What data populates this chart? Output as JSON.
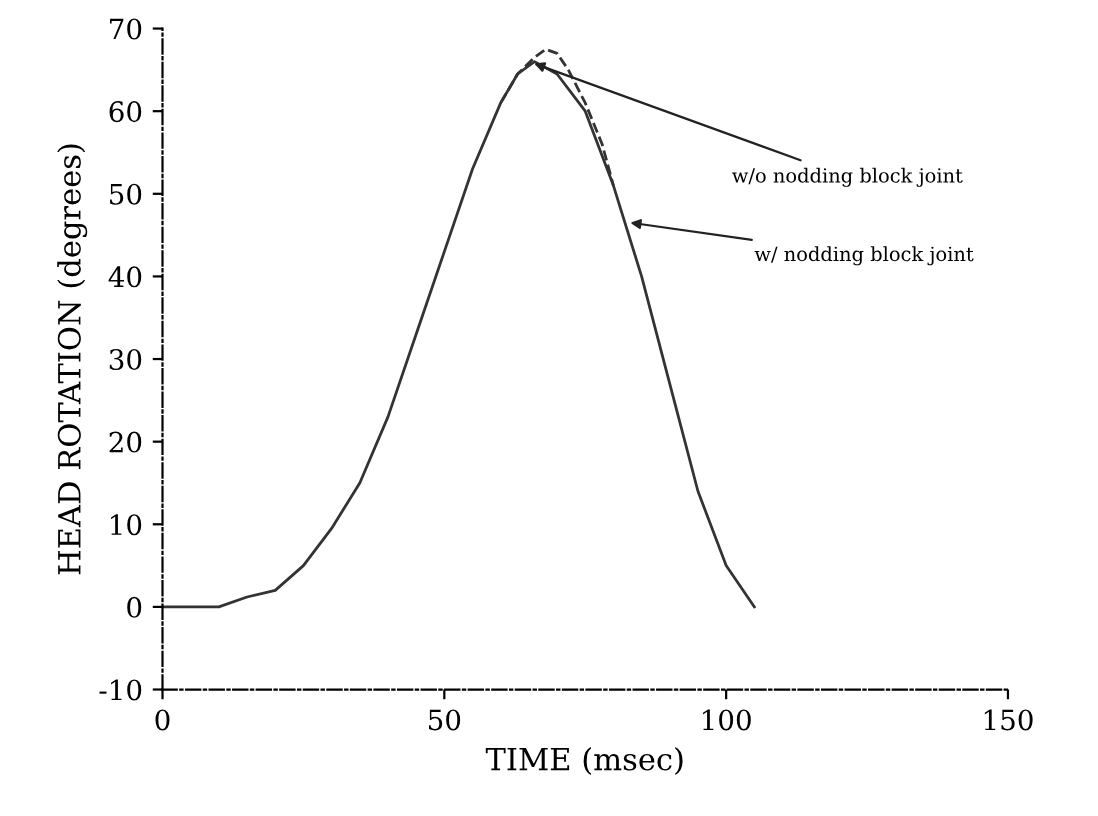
{
  "chart_data": {
    "type": "line",
    "xlabel": "TIME (msec)",
    "ylabel": "HEAD ROTATION (degrees)",
    "xlim": [
      0,
      150
    ],
    "ylim": [
      -10,
      70
    ],
    "xticks": [
      0,
      50,
      100,
      150
    ],
    "yticks": [
      -10,
      0,
      10,
      20,
      30,
      40,
      50,
      60,
      70
    ],
    "grid": false,
    "series": [
      {
        "color": "#333333",
        "line_style": "solid",
        "x": [
          0,
          10,
          15,
          20,
          25,
          30,
          35,
          40,
          45,
          50,
          55,
          60,
          63,
          66,
          70,
          75,
          80,
          85,
          90,
          95,
          100,
          105
        ],
        "values": [
          0,
          0,
          1.2,
          2,
          5,
          9.5,
          15,
          23,
          33,
          43,
          53,
          61,
          64.5,
          66,
          64.5,
          60,
          51,
          40,
          27,
          14,
          5,
          0
        ]
      },
      {
        "color": "#333333",
        "line_style": "dashed",
        "x": [
          60,
          63,
          66,
          68,
          70,
          72,
          75,
          78,
          80
        ],
        "values": [
          61,
          64.5,
          66.5,
          67.5,
          67,
          65,
          61,
          56,
          51
        ]
      }
    ],
    "annotations": [
      {
        "text": "w/o nodding block joint",
        "x": 65,
        "y": 66
      },
      {
        "text": "w/ nodding block joint",
        "x": 82,
        "y": 46.6
      }
    ]
  }
}
